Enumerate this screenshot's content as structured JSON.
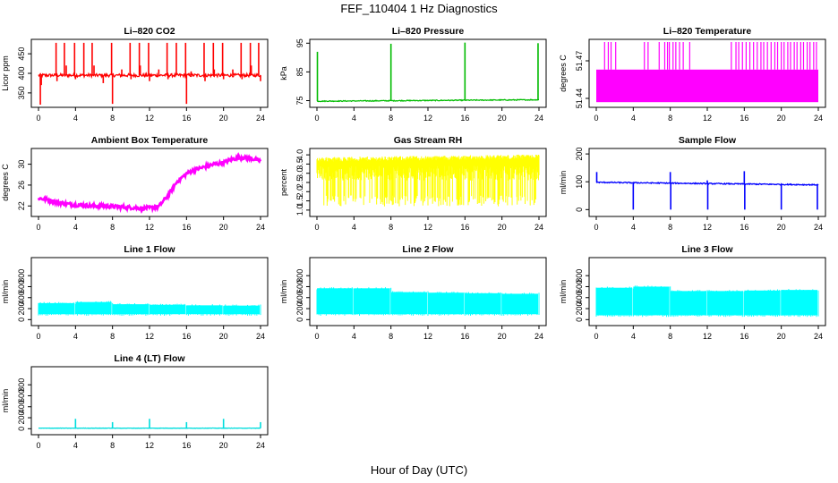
{
  "figure": {
    "title": "FEF_110404  1 Hz Diagnostics",
    "xlabel": "Hour of Day (UTC)"
  },
  "chart_data": [
    {
      "type": "line",
      "title": "Li–820 CO2",
      "ylabel": "Licor ppm",
      "xlim": [
        0,
        24
      ],
      "ylim": [
        320,
        480
      ],
      "yticks": [
        "350",
        "400",
        "450"
      ],
      "xticks": [
        "0",
        "4",
        "8",
        "12",
        "16",
        "20",
        "24"
      ],
      "color": "#ff0000",
      "series": [
        {
          "kind": "baseline_spikes",
          "baseline": 395,
          "noise": 4,
          "spikes": [
            {
              "x": 0.2,
              "y": 320
            },
            {
              "x": 1.9,
              "y": 478
            },
            {
              "x": 2.8,
              "y": 478
            },
            {
              "x": 3.9,
              "y": 478
            },
            {
              "x": 4.9,
              "y": 478
            },
            {
              "x": 5.8,
              "y": 478
            },
            {
              "x": 7.9,
              "y": 478
            },
            {
              "x": 8.0,
              "y": 322
            },
            {
              "x": 9.9,
              "y": 478
            },
            {
              "x": 10.9,
              "y": 478
            },
            {
              "x": 11.9,
              "y": 478
            },
            {
              "x": 13.9,
              "y": 478
            },
            {
              "x": 14.9,
              "y": 478
            },
            {
              "x": 15.9,
              "y": 478
            },
            {
              "x": 16.0,
              "y": 322
            },
            {
              "x": 17.9,
              "y": 478
            },
            {
              "x": 18.9,
              "y": 478
            },
            {
              "x": 19.9,
              "y": 478
            },
            {
              "x": 21.9,
              "y": 478
            },
            {
              "x": 22.9,
              "y": 478
            },
            {
              "x": 23.8,
              "y": 478
            }
          ],
          "minor_spikes": [
            {
              "x": 0.3,
              "y": 370
            },
            {
              "x": 2.0,
              "y": 380
            },
            {
              "x": 3.0,
              "y": 420
            },
            {
              "x": 4.0,
              "y": 385
            },
            {
              "x": 6.0,
              "y": 420
            },
            {
              "x": 7.0,
              "y": 375
            },
            {
              "x": 9.0,
              "y": 410
            },
            {
              "x": 10.0,
              "y": 385
            },
            {
              "x": 11.0,
              "y": 420
            },
            {
              "x": 12.0,
              "y": 380
            },
            {
              "x": 13.0,
              "y": 410
            },
            {
              "x": 14.0,
              "y": 385
            },
            {
              "x": 16.5,
              "y": 405
            },
            {
              "x": 18.0,
              "y": 380
            },
            {
              "x": 19.0,
              "y": 410
            },
            {
              "x": 20.0,
              "y": 385
            },
            {
              "x": 21.0,
              "y": 410
            },
            {
              "x": 22.0,
              "y": 385
            },
            {
              "x": 23.0,
              "y": 420
            },
            {
              "x": 24.0,
              "y": 380
            }
          ]
        }
      ]
    },
    {
      "type": "line",
      "title": "Li–820 Pressure",
      "ylabel": "kPa",
      "xlim": [
        0,
        24
      ],
      "ylim": [
        73.6,
        95.4
      ],
      "yticks": [
        "75",
        "85",
        "95"
      ],
      "xticks": [
        "0",
        "4",
        "8",
        "12",
        "16",
        "20",
        "24"
      ],
      "color": "#00bb00",
      "series": [
        {
          "kind": "baseline_spikes",
          "baseline": 74.8,
          "baseline_end": 75.3,
          "noise": 0.15,
          "spikes": [
            {
              "x": 0.05,
              "y": 92.0
            },
            {
              "x": 8.0,
              "y": 94.8
            },
            {
              "x": 16.0,
              "y": 95.2
            },
            {
              "x": 23.9,
              "y": 95.0
            }
          ],
          "minor_spikes": []
        }
      ]
    },
    {
      "type": "line",
      "title": "Li–820 Temperature",
      "ylabel": "degrees C",
      "xlim": [
        0,
        24
      ],
      "ylim": [
        51.435,
        51.485
      ],
      "yticks": [
        "51.44",
        "51.47"
      ],
      "xticks": [
        "0",
        "4",
        "8",
        "12",
        "16",
        "20",
        "24"
      ],
      "color": "#ff00ff",
      "series": [
        {
          "kind": "band",
          "lower": 51.437,
          "upper": 51.463,
          "spikes_to": 51.485,
          "spike_x": [
            0.9,
            1.3,
            1.6,
            2.1,
            5.2,
            5.6,
            6.8,
            7.4,
            7.7,
            7.9,
            8.3,
            8.6,
            9.0,
            9.4,
            10.1,
            14.6,
            15.1,
            15.4,
            15.8,
            16.2,
            16.6,
            17.0,
            17.4,
            17.8,
            18.1,
            18.5,
            18.9,
            19.3,
            19.6,
            20.0,
            20.3,
            20.7,
            21.0,
            21.4,
            21.7,
            22.1,
            22.4,
            22.8,
            23.1,
            23.5,
            23.8
          ]
        }
      ]
    },
    {
      "type": "line",
      "title": "Ambient Box Temperature",
      "ylabel": "degrees C",
      "xlim": [
        0,
        24
      ],
      "ylim": [
        20.5,
        32.5
      ],
      "yticks": [
        "22",
        "26",
        "30"
      ],
      "xticks": [
        "0",
        "4",
        "8",
        "12",
        "16",
        "20",
        "24"
      ],
      "color": "#ff00ff",
      "series": [
        {
          "kind": "curve",
          "points": [
            [
              0,
              23.5
            ],
            [
              1,
              23.2
            ],
            [
              2,
              22.7
            ],
            [
              3,
              22.4
            ],
            [
              4,
              22.2
            ],
            [
              5,
              22.1
            ],
            [
              6,
              22.0
            ],
            [
              7,
              22.0
            ],
            [
              8,
              21.9
            ],
            [
              9,
              21.8
            ],
            [
              10,
              21.7
            ],
            [
              11,
              21.6
            ],
            [
              12,
              21.6
            ],
            [
              13,
              21.9
            ],
            [
              14,
              24.0
            ],
            [
              15,
              26.7
            ],
            [
              16,
              28.2
            ],
            [
              17,
              29.0
            ],
            [
              18,
              29.5
            ],
            [
              19,
              30.0
            ],
            [
              20,
              30.3
            ],
            [
              21,
              31.0
            ],
            [
              22,
              31.3
            ],
            [
              23,
              31.1
            ],
            [
              24,
              30.6
            ]
          ],
          "noise": 0.35
        }
      ]
    },
    {
      "type": "line",
      "title": "Gas Stream RH",
      "ylabel": "percent",
      "xlim": [
        0,
        24
      ],
      "ylim": [
        0.8,
        4.2
      ],
      "yticks": [
        "1.0",
        "1.5",
        "2.0",
        "2.5",
        "3.0",
        "3.5",
        "4.0"
      ],
      "xticks": [
        "0",
        "4",
        "8",
        "12",
        "16",
        "20",
        "24"
      ],
      "color": "#ffff00",
      "series": [
        {
          "kind": "noise_band",
          "upper": 3.75,
          "upper_end": 3.9,
          "lower_min": 1.2,
          "typical_low": 2.6
        }
      ]
    },
    {
      "type": "line",
      "title": "Sample Flow",
      "ylabel": "ml/min",
      "xlim": [
        0,
        24
      ],
      "ylim": [
        -15,
        210
      ],
      "yticks": [
        "0",
        "100",
        "200"
      ],
      "xticks": [
        "0",
        "4",
        "8",
        "12",
        "16",
        "20",
        "24"
      ],
      "color": "#0000ff",
      "series": [
        {
          "kind": "baseline_spikes",
          "baseline": 98,
          "baseline_end": 89,
          "noise": 2,
          "spikes": [
            {
              "x": 0.05,
              "y": 135
            },
            {
              "x": 4.0,
              "y": 0
            },
            {
              "x": 8.0,
              "y": 135
            },
            {
              "x": 8.05,
              "y": 0
            },
            {
              "x": 12.0,
              "y": 105
            },
            {
              "x": 12.05,
              "y": 0
            },
            {
              "x": 16.0,
              "y": 138
            },
            {
              "x": 16.05,
              "y": 0
            },
            {
              "x": 20.0,
              "y": 0
            },
            {
              "x": 23.9,
              "y": 0
            }
          ],
          "minor_spikes": []
        }
      ]
    },
    {
      "type": "line",
      "title": "Line 1 Flow",
      "ylabel": "ml/min",
      "xlim": [
        0,
        24
      ],
      "ylim": [
        -60,
        1080
      ],
      "yticks": [
        "0",
        "200",
        "400",
        "600",
        "800"
      ],
      "xticks": [
        "0",
        "4",
        "8",
        "12",
        "16",
        "20",
        "24"
      ],
      "color": "#00ffff",
      "series": [
        {
          "kind": "flow_band",
          "lower": 100,
          "segments": [
            [
              0,
              4,
              300
            ],
            [
              4,
              8,
              320
            ],
            [
              8,
              12,
              280
            ],
            [
              12,
              16,
              270
            ],
            [
              16,
              20,
              260
            ],
            [
              20,
              24,
              255
            ]
          ]
        }
      ]
    },
    {
      "type": "line",
      "title": "Line 2 Flow",
      "ylabel": "ml/min",
      "xlim": [
        0,
        24
      ],
      "ylim": [
        -60,
        1080
      ],
      "yticks": [
        "0",
        "200",
        "400",
        "600",
        "800"
      ],
      "xticks": [
        "0",
        "4",
        "8",
        "12",
        "16",
        "20",
        "24"
      ],
      "color": "#00ffff",
      "series": [
        {
          "kind": "flow_band",
          "lower": 100,
          "segments": [
            [
              0,
              4,
              570
            ],
            [
              4,
              8,
              570
            ],
            [
              8,
              12,
              500
            ],
            [
              12,
              16,
              490
            ],
            [
              16,
              20,
              480
            ],
            [
              20,
              24,
              470
            ]
          ]
        }
      ]
    },
    {
      "type": "line",
      "title": "Line 3 Flow",
      "ylabel": "ml/min",
      "xlim": [
        0,
        24
      ],
      "ylim": [
        -60,
        1080
      ],
      "yticks": [
        "0",
        "200",
        "400",
        "600",
        "800"
      ],
      "xticks": [
        "0",
        "4",
        "8",
        "12",
        "16",
        "20",
        "24"
      ],
      "color": "#00ffff",
      "series": [
        {
          "kind": "flow_band",
          "lower": 80,
          "segments": [
            [
              0,
              4,
              580
            ],
            [
              4,
              8,
              600
            ],
            [
              8,
              12,
              520
            ],
            [
              12,
              16,
              520
            ],
            [
              16,
              20,
              530
            ],
            [
              20,
              24,
              540
            ]
          ]
        }
      ]
    },
    {
      "type": "line",
      "title": "Line 4 (LT) Flow",
      "ylabel": "ml/min",
      "xlim": [
        0,
        24
      ],
      "ylim": [
        -60,
        1080
      ],
      "yticks": [
        "0",
        "200",
        "400",
        "600",
        "800"
      ],
      "xticks": [
        "0",
        "4",
        "8",
        "12",
        "16",
        "20",
        "24"
      ],
      "color": "#00dddd",
      "series": [
        {
          "kind": "baseline_spikes",
          "baseline": 10,
          "noise": 3,
          "spikes": [
            {
              "x": 4.0,
              "y": 180
            },
            {
              "x": 8.0,
              "y": 120
            },
            {
              "x": 12.0,
              "y": 180
            },
            {
              "x": 16.0,
              "y": 120
            },
            {
              "x": 20.0,
              "y": 180
            },
            {
              "x": 24.0,
              "y": 120
            }
          ],
          "minor_spikes": []
        }
      ]
    }
  ]
}
